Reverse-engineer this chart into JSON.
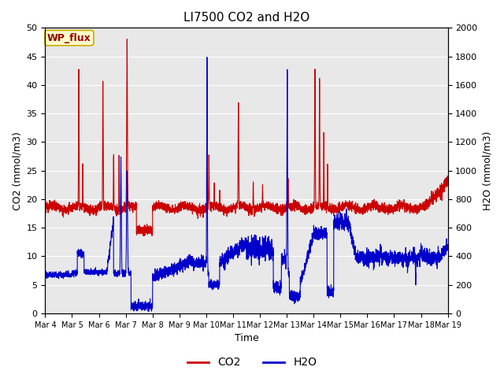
{
  "title": "LI7500 CO2 and H2O",
  "xlabel": "Time",
  "ylabel_left": "CO2 (mmol/m3)",
  "ylabel_right": "H2O (mmol/m3)",
  "annotation": "WP_flux",
  "ylim_left": [
    0,
    50
  ],
  "ylim_right": [
    0,
    2000
  ],
  "yticks_left": [
    0,
    5,
    10,
    15,
    20,
    25,
    30,
    35,
    40,
    45,
    50
  ],
  "yticks_right": [
    0,
    200,
    400,
    600,
    800,
    1000,
    1200,
    1400,
    1600,
    1800,
    2000
  ],
  "xtick_labels": [
    "Mar 4",
    "Mar 5",
    "Mar 6",
    "Mar 7",
    "Mar 8",
    "Mar 9",
    "Mar 10",
    "Mar 11",
    "Mar 12",
    "Mar 13",
    "Mar 14",
    "Mar 15",
    "Mar 16",
    "Mar 17",
    "Mar 18",
    "Mar 19"
  ],
  "co2_color": "#CC0000",
  "h2o_color": "#0000CC",
  "background_color": "#E8E8E8",
  "grid_color": "#FFFFFF",
  "legend_co2": "CO2",
  "legend_h2o": "H2O",
  "annotation_bg": "#FFFFCC",
  "annotation_border": "#CCAA00",
  "annotation_text_color": "#990000",
  "figwidth": 6.4,
  "figheight": 4.8,
  "dpi": 100
}
